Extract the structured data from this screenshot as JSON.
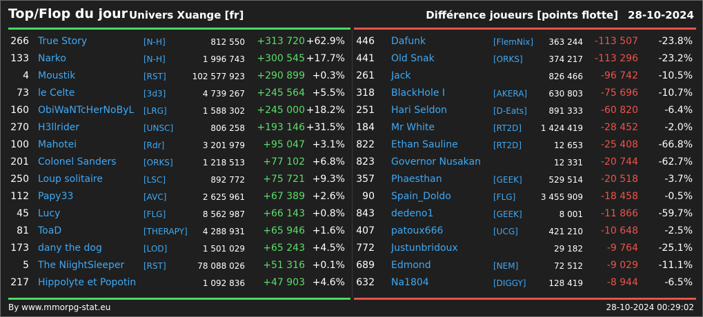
{
  "header": {
    "title": "Top/Flop du jour",
    "subtitle": "Univers Xuange [fr]",
    "right_title": "Différence joueurs [points flotte]",
    "date": "28-10-2024"
  },
  "colors": {
    "top_accent": "#4cd964",
    "flop_accent": "#e8534a",
    "name_link": "#3fa9f5",
    "positive": "#5cde6a",
    "negative": "#f0524a"
  },
  "top": [
    {
      "rank": "266",
      "name": "True Story",
      "tag": "[N-H]",
      "points": "812 550",
      "diff": "+313 720",
      "pct": "+62.9%"
    },
    {
      "rank": "133",
      "name": "Narko",
      "tag": "[N-H]",
      "points": "1 996 743",
      "diff": "+300 545",
      "pct": "+17.7%"
    },
    {
      "rank": "4",
      "name": "Moustik",
      "tag": "[RST]",
      "points": "102 577 923",
      "diff": "+290 899",
      "pct": "+0.3%"
    },
    {
      "rank": "73",
      "name": "le Celte",
      "tag": "[3d3]",
      "points": "4 739 267",
      "diff": "+245 564",
      "pct": "+5.5%"
    },
    {
      "rank": "160",
      "name": "ObiWaNTcHerNoByL",
      "tag": "[LRG]",
      "points": "1 588 302",
      "diff": "+245 000",
      "pct": "+18.2%"
    },
    {
      "rank": "270",
      "name": "H3llrider",
      "tag": "[UNSC]",
      "points": "806 258",
      "diff": "+193 146",
      "pct": "+31.5%"
    },
    {
      "rank": "100",
      "name": "Mahotei",
      "tag": "[Rdr]",
      "points": "3 201 979",
      "diff": "+95 047",
      "pct": "+3.1%"
    },
    {
      "rank": "201",
      "name": "Colonel Sanders",
      "tag": "[ORKS]",
      "points": "1 218 513",
      "diff": "+77 102",
      "pct": "+6.8%"
    },
    {
      "rank": "250",
      "name": "Loup solitaire",
      "tag": "[LSC]",
      "points": "892 772",
      "diff": "+75 721",
      "pct": "+9.3%"
    },
    {
      "rank": "112",
      "name": "Papy33",
      "tag": "[AVC]",
      "points": "2 625 961",
      "diff": "+67 389",
      "pct": "+2.6%"
    },
    {
      "rank": "45",
      "name": "Lucy",
      "tag": "[FLG]",
      "points": "8 562 987",
      "diff": "+66 143",
      "pct": "+0.8%"
    },
    {
      "rank": "81",
      "name": "ToaD",
      "tag": "[THERAPY]",
      "points": "4 288 931",
      "diff": "+65 946",
      "pct": "+1.6%"
    },
    {
      "rank": "173",
      "name": "dany the dog",
      "tag": "[LOD]",
      "points": "1 501 029",
      "diff": "+65 243",
      "pct": "+4.5%"
    },
    {
      "rank": "5",
      "name": "The NiightSleeper",
      "tag": "[RST]",
      "points": "78 088 026",
      "diff": "+51 316",
      "pct": "+0.1%"
    },
    {
      "rank": "217",
      "name": "Hippolyte et Popotin",
      "tag": "",
      "points": "1 092 836",
      "diff": "+47 903",
      "pct": "+4.6%"
    }
  ],
  "flop": [
    {
      "rank": "446",
      "name": "Dafunk",
      "tag": "[FlemNix]",
      "points": "363 244",
      "diff": "-113 507",
      "pct": "-23.8%"
    },
    {
      "rank": "441",
      "name": "Old Snak",
      "tag": "[ORKS]",
      "points": "374 217",
      "diff": "-113 296",
      "pct": "-23.2%"
    },
    {
      "rank": "261",
      "name": "Jack",
      "tag": "",
      "points": "826 466",
      "diff": "-96 742",
      "pct": "-10.5%"
    },
    {
      "rank": "318",
      "name": "BlackHole I",
      "tag": "[AKERA]",
      "points": "630 803",
      "diff": "-75 696",
      "pct": "-10.7%"
    },
    {
      "rank": "251",
      "name": "Hari Seldon",
      "tag": "[D-Eats]",
      "points": "891 333",
      "diff": "-60 820",
      "pct": "-6.4%"
    },
    {
      "rank": "184",
      "name": "Mr White",
      "tag": "[RT2D]",
      "points": "1 424 419",
      "diff": "-28 452",
      "pct": "-2.0%"
    },
    {
      "rank": "822",
      "name": "Ethan Sauline",
      "tag": "[RT2D]",
      "points": "12 653",
      "diff": "-25 408",
      "pct": "-66.8%"
    },
    {
      "rank": "823",
      "name": "Governor Nusakan",
      "tag": "",
      "points": "12 331",
      "diff": "-20 744",
      "pct": "-62.7%"
    },
    {
      "rank": "357",
      "name": "Phaesthan",
      "tag": "[GEEK]",
      "points": "529 514",
      "diff": "-20 518",
      "pct": "-3.7%"
    },
    {
      "rank": "90",
      "name": "Spain_Doldo",
      "tag": "[FLG]",
      "points": "3 455 909",
      "diff": "-18 458",
      "pct": "-0.5%"
    },
    {
      "rank": "843",
      "name": "dedeno1",
      "tag": "[GEEK]",
      "points": "8 001",
      "diff": "-11 866",
      "pct": "-59.7%"
    },
    {
      "rank": "407",
      "name": "patoux666",
      "tag": "[UCG]",
      "points": "421 210",
      "diff": "-10 648",
      "pct": "-2.5%"
    },
    {
      "rank": "772",
      "name": "Justunbridoux",
      "tag": "",
      "points": "29 182",
      "diff": "-9 764",
      "pct": "-25.1%"
    },
    {
      "rank": "689",
      "name": "Edmond",
      "tag": "[NEM]",
      "points": "72 512",
      "diff": "-9 029",
      "pct": "-11.1%"
    },
    {
      "rank": "632",
      "name": "Na1804",
      "tag": "[DIGGY]",
      "points": "128 419",
      "diff": "-8 944",
      "pct": "-6.5%"
    }
  ],
  "footer": {
    "credit": "By www.mmorpg-stat.eu",
    "timestamp": "28-10-2024 00:29:02"
  }
}
